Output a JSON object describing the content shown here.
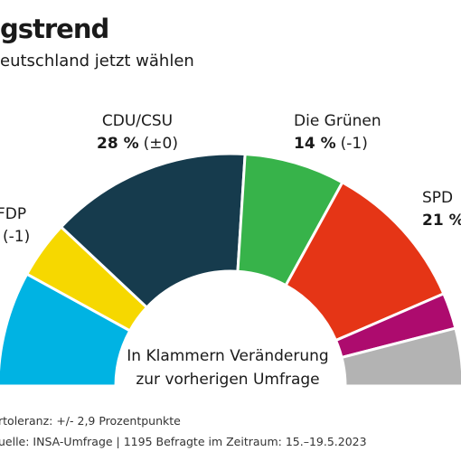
{
  "chart_data": {
    "type": "half-donut",
    "title": "gstrend",
    "subtitle": "eutschland jetzt wählen",
    "categories": [
      null,
      "FDP",
      "CDU/CSU",
      "Die Grünen",
      "SPD",
      null,
      null
    ],
    "values": [
      16,
      8,
      28,
      14,
      21,
      5,
      8
    ],
    "value_labels": [
      null,
      null,
      "28 %",
      "14 %",
      "21 %",
      null,
      null
    ],
    "changes": [
      null,
      "(-1)",
      "(±0)",
      "(-1)",
      null,
      null,
      null
    ],
    "colors": [
      "#00b3e3",
      "#f6d800",
      "#163b4d",
      "#37b34a",
      "#e53516",
      "#ad0b6e",
      "#b3b3b3"
    ],
    "center_text": [
      "In Klammern Veränderung",
      "zur vorherigen Umfrage"
    ],
    "notes": [
      "rtoleranz: +/- 2,9 Prozentpunkte",
      "uelle: INSA-Umfrage | 1195 Befragte im Zeitraum: 15.–19.5.2023"
    ]
  }
}
